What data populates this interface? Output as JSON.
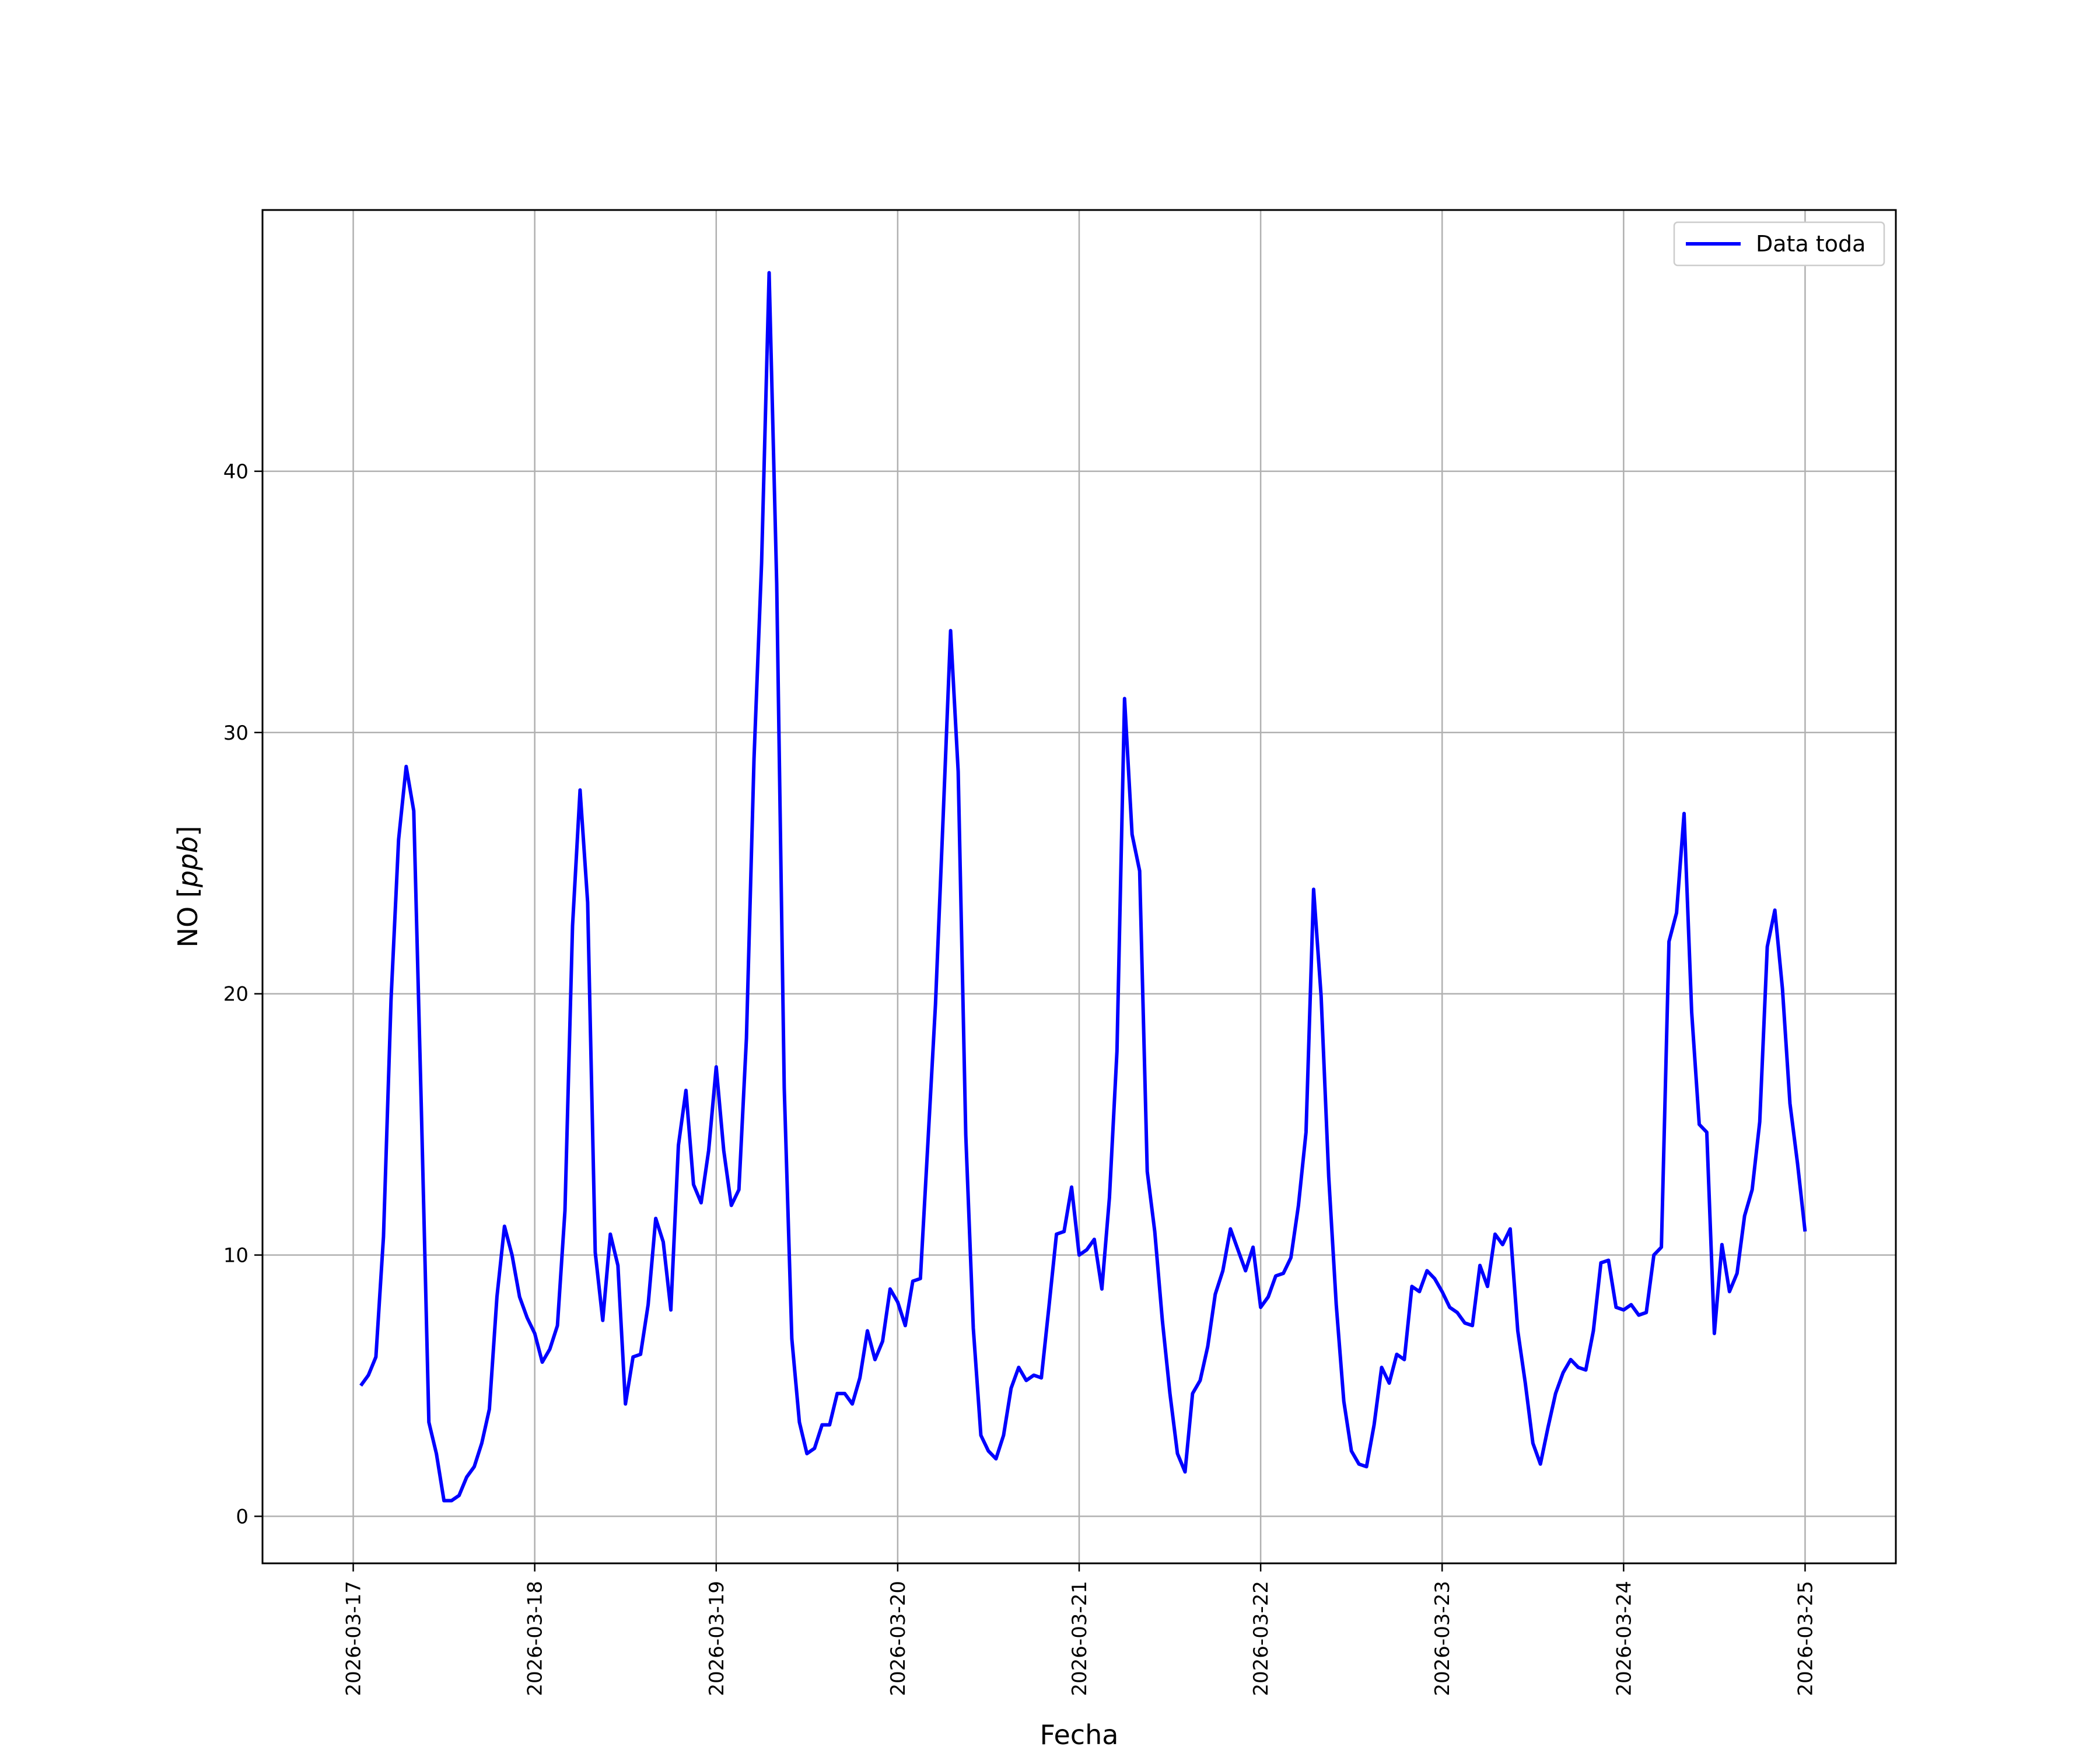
{
  "chart_data": {
    "type": "line",
    "title": "",
    "xlabel": "Fecha",
    "ylabel_prefix": "NO [",
    "ylabel_unit": "ppb",
    "ylabel_suffix": "]",
    "grid": true,
    "legend_position": "top-right",
    "xlim": [
      "2026-03-16T12:00",
      "2026-03-25T12:00"
    ],
    "ylim": [
      -1.8,
      50
    ],
    "x_ticks": [
      "2026-03-17",
      "2026-03-18",
      "2026-03-19",
      "2026-03-20",
      "2026-03-21",
      "2026-03-22",
      "2026-03-23",
      "2026-03-24",
      "2026-03-25"
    ],
    "y_ticks": [
      0,
      10,
      20,
      30,
      40
    ],
    "series": [
      {
        "name": "Data toda",
        "color": "#0000ff",
        "start": "2026-03-17T01:00",
        "step_hours": 1,
        "values": [
          5.0,
          5.4,
          6.1,
          10.7,
          19.8,
          25.9,
          28.7,
          27.0,
          15.7,
          3.6,
          2.4,
          0.6,
          0.6,
          0.8,
          1.5,
          1.9,
          2.8,
          4.1,
          8.4,
          11.1,
          10.0,
          8.4,
          7.6,
          7.0,
          5.9,
          6.4,
          7.3,
          11.7,
          22.6,
          27.8,
          23.5,
          10.1,
          7.5,
          10.8,
          9.6,
          4.3,
          6.1,
          6.2,
          8.1,
          11.4,
          10.5,
          7.9,
          14.2,
          16.3,
          12.7,
          12.0,
          14.0,
          17.2,
          14.0,
          11.9,
          12.5,
          18.3,
          29.0,
          36.5,
          47.6,
          35.7,
          16.4,
          6.8,
          3.6,
          2.4,
          2.6,
          3.5,
          3.5,
          4.7,
          4.7,
          4.3,
          5.3,
          7.1,
          6.0,
          6.7,
          8.7,
          8.2,
          7.3,
          9.0,
          9.1,
          14.3,
          19.6,
          26.7,
          33.9,
          28.5,
          14.6,
          7.2,
          3.1,
          2.5,
          2.2,
          3.1,
          4.9,
          5.7,
          5.2,
          5.4,
          5.3,
          8.0,
          10.8,
          10.9,
          12.6,
          10.0,
          10.2,
          10.6,
          8.7,
          12.2,
          17.8,
          31.3,
          26.1,
          24.7,
          13.2,
          10.9,
          7.5,
          4.7,
          2.4,
          1.7,
          4.7,
          5.2,
          6.5,
          8.5,
          9.4,
          11.0,
          10.2,
          9.4,
          10.3,
          8.0,
          8.4,
          9.2,
          9.3,
          9.9,
          11.9,
          14.7,
          24.0,
          19.9,
          13.0,
          8.1,
          4.4,
          2.5,
          2.0,
          1.9,
          3.5,
          5.7,
          5.1,
          6.2,
          6.0,
          8.8,
          8.6,
          9.4,
          9.1,
          8.6,
          8.0,
          7.8,
          7.4,
          7.3,
          9.6,
          8.8,
          10.8,
          10.4,
          11.0,
          7.1,
          5.1,
          2.8,
          2.0,
          3.4,
          4.7,
          5.5,
          6.0,
          5.7,
          5.6,
          7.1,
          9.7,
          9.8,
          8.0,
          7.9,
          8.1,
          7.7,
          7.8,
          10.0,
          10.3,
          22.0,
          23.1,
          26.9,
          19.3,
          15.0,
          14.7,
          7.0,
          10.4,
          8.6,
          9.3,
          11.5,
          12.5,
          15.1,
          21.8,
          23.2,
          20.2,
          15.8,
          13.5,
          10.9
        ]
      }
    ]
  }
}
